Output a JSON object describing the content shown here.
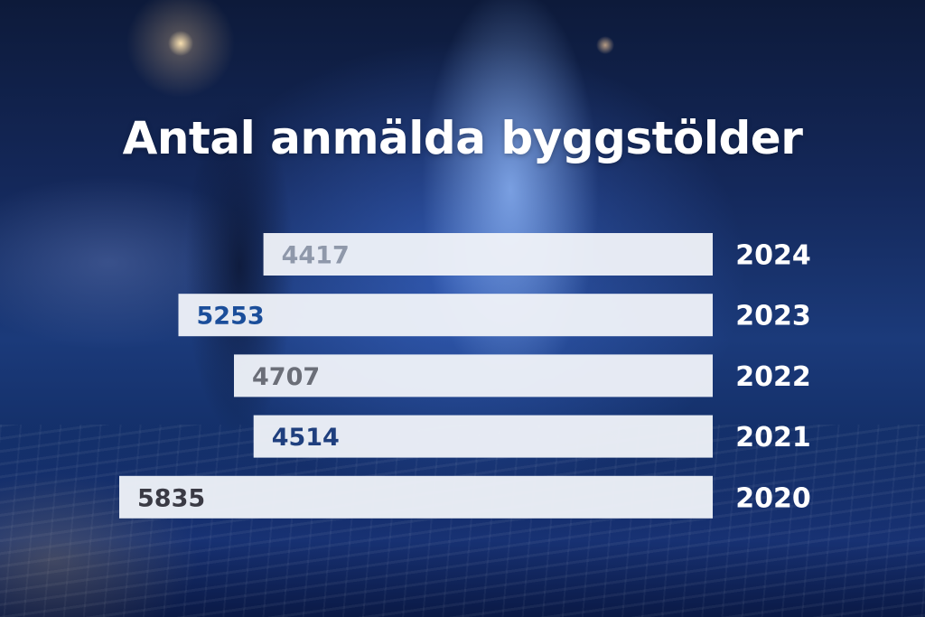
{
  "chart_data": {
    "type": "bar",
    "orientation": "horizontal",
    "title": "Antal anmälda byggstölder",
    "categories": [
      "2024",
      "2023",
      "2022",
      "2021",
      "2020"
    ],
    "values": [
      4417,
      5253,
      4707,
      4514,
      5835
    ],
    "xlim": [
      0,
      6500
    ],
    "grid": false,
    "legend": "none",
    "colors": {
      "bar": "#eef1f8",
      "value_label": [
        "#8f98aa",
        "#1b4e9a",
        "#6b6e78",
        "#1f3f7e",
        "#3a3a44"
      ],
      "category_label": "#ffffff",
      "title": "#ffffff"
    }
  }
}
